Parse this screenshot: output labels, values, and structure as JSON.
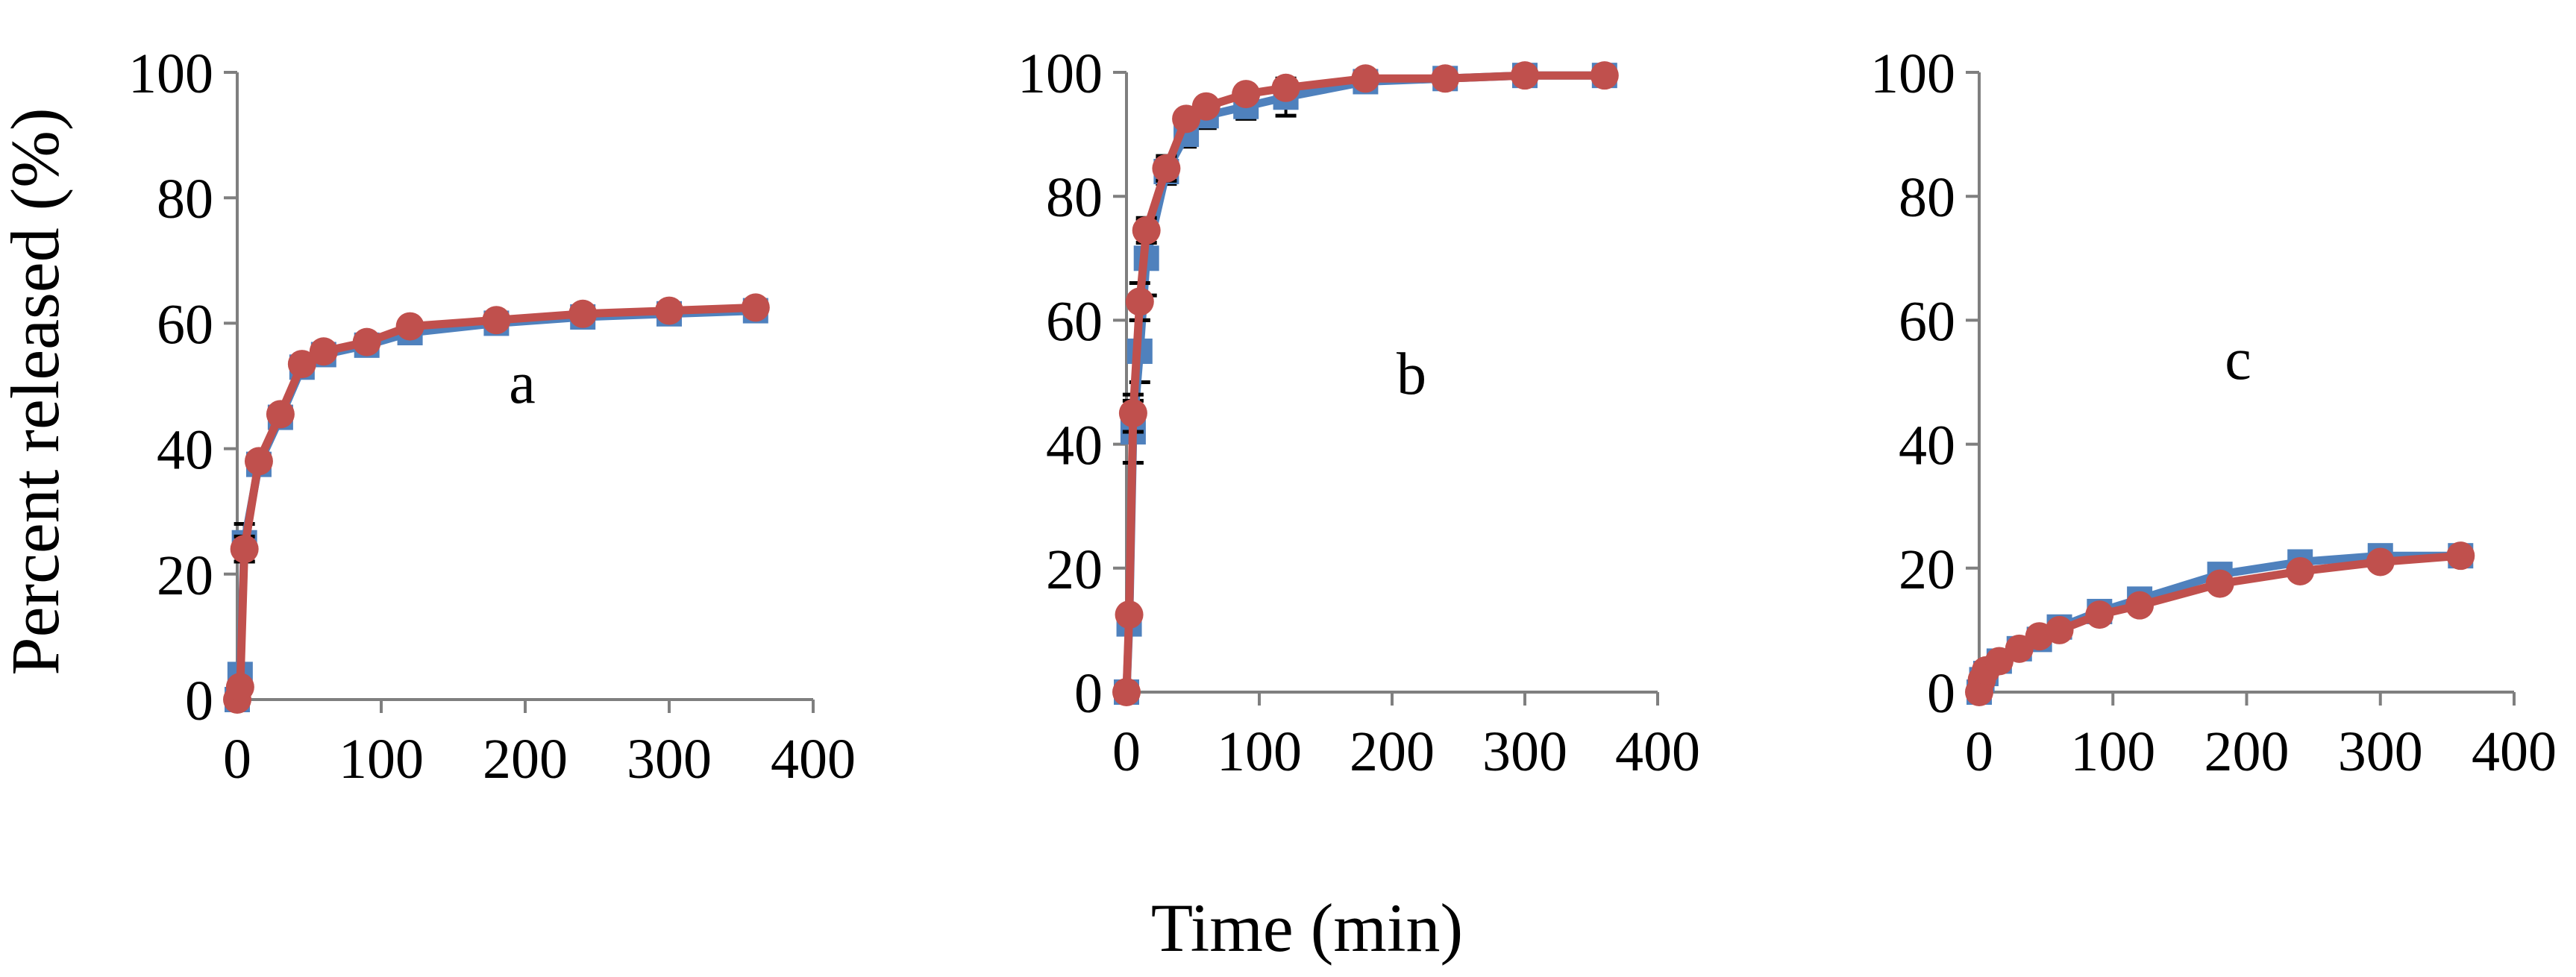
{
  "colors": {
    "blue_series": "#4f81bd",
    "red_series": "#c0504d",
    "error_bar": "#000000",
    "axis": "#7f7f7f"
  },
  "figure": {
    "ylabel": "Percent released (%)",
    "xlabel": "Time (min)"
  },
  "chart_data": [
    {
      "type": "line",
      "panel_label": "a",
      "xlim": [
        0,
        400
      ],
      "ylim": [
        0,
        100
      ],
      "x_ticks": [
        0,
        100,
        200,
        300,
        400
      ],
      "y_ticks": [
        0,
        20,
        40,
        60,
        80,
        100
      ],
      "series": [
        {
          "marker": "square",
          "color": "#4f81bd",
          "x": [
            0,
            2,
            5,
            15,
            30,
            45,
            60,
            90,
            120,
            180,
            240,
            300,
            360
          ],
          "y": [
            0,
            4,
            25,
            37.5,
            45,
            53,
            55,
            56.5,
            58.5,
            60,
            61,
            61.5,
            62
          ],
          "err": [
            0,
            1,
            3,
            1.5,
            1.5,
            1,
            1,
            1,
            1,
            1,
            1,
            1,
            1
          ]
        },
        {
          "marker": "circle",
          "color": "#c0504d",
          "x": [
            0,
            2,
            5,
            15,
            30,
            45,
            60,
            90,
            120,
            180,
            240,
            300,
            360
          ],
          "y": [
            0,
            2,
            24,
            38,
            45.5,
            53.5,
            55.5,
            57,
            59.5,
            60.5,
            61.5,
            62,
            62.5
          ],
          "err": [
            0,
            1,
            2,
            1,
            1,
            1,
            1,
            1,
            1,
            1,
            1,
            1,
            1
          ]
        }
      ]
    },
    {
      "type": "line",
      "panel_label": "b",
      "xlim": [
        0,
        400
      ],
      "ylim": [
        0,
        100
      ],
      "x_ticks": [
        0,
        100,
        200,
        300,
        400
      ],
      "y_ticks": [
        0,
        20,
        40,
        60,
        80,
        100
      ],
      "series": [
        {
          "marker": "square",
          "color": "#4f81bd",
          "x": [
            0,
            2,
            5,
            10,
            15,
            30,
            45,
            60,
            90,
            120,
            180,
            240,
            300,
            360
          ],
          "y": [
            0,
            11,
            42,
            55,
            70,
            84,
            90,
            93,
            94.5,
            96,
            98.5,
            99,
            99.5,
            99.5
          ],
          "err": [
            0,
            1,
            5,
            5,
            6,
            2,
            2,
            2,
            2,
            3,
            1,
            1,
            1,
            1
          ]
        },
        {
          "marker": "circle",
          "color": "#c0504d",
          "x": [
            0,
            2,
            5,
            10,
            15,
            30,
            45,
            60,
            90,
            120,
            180,
            240,
            300,
            360
          ],
          "y": [
            0,
            12.5,
            45,
            63,
            74.5,
            84.5,
            92.5,
            94.5,
            96.5,
            97.5,
            99,
            99,
            99.5,
            99.5
          ],
          "err": [
            0,
            1,
            3,
            3,
            2,
            2,
            1,
            1,
            1,
            1,
            1,
            1,
            1,
            1
          ]
        }
      ]
    },
    {
      "type": "line",
      "panel_label": "c",
      "xlim": [
        0,
        400
      ],
      "ylim": [
        0,
        100
      ],
      "x_ticks": [
        0,
        100,
        200,
        300,
        400
      ],
      "y_ticks": [
        0,
        20,
        40,
        60,
        80,
        100
      ],
      "series": [
        {
          "marker": "square",
          "color": "#4f81bd",
          "x": [
            0,
            2,
            5,
            15,
            30,
            45,
            60,
            90,
            120,
            180,
            240,
            300,
            360
          ],
          "y": [
            0,
            2,
            3,
            5,
            7,
            8.5,
            10.5,
            13,
            15,
            19,
            21,
            22,
            22
          ],
          "err": [
            0,
            0.5,
            0.5,
            0.5,
            0.5,
            0.5,
            0.5,
            1,
            1,
            1,
            1,
            1,
            1
          ]
        },
        {
          "marker": "circle",
          "color": "#c0504d",
          "x": [
            0,
            2,
            5,
            15,
            30,
            45,
            60,
            90,
            120,
            180,
            240,
            300,
            360
          ],
          "y": [
            0,
            2,
            3.5,
            5,
            7,
            9,
            10,
            12.5,
            14,
            17.5,
            19.5,
            21,
            22
          ],
          "err": [
            0,
            0.5,
            0.5,
            0.5,
            0.5,
            0.5,
            0.5,
            0.5,
            0.5,
            0.5,
            0.5,
            0.5,
            0.5
          ]
        }
      ]
    }
  ]
}
